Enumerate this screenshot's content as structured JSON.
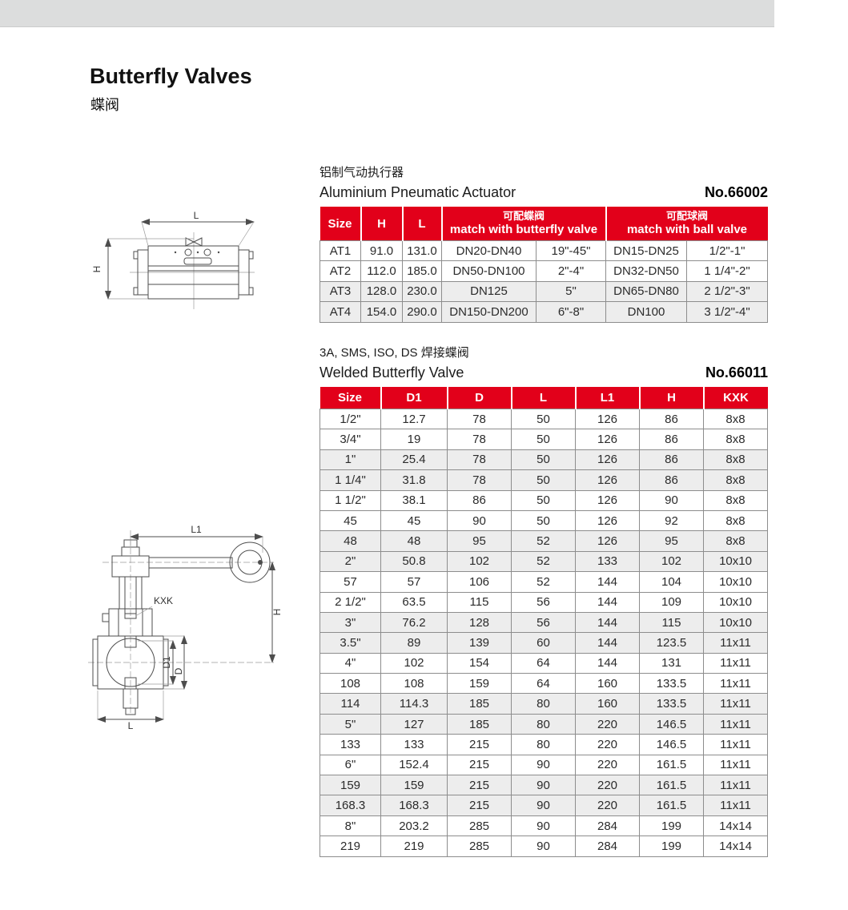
{
  "page": {
    "title": "Butterfly Valves",
    "subtitle_zh": "蝶阀"
  },
  "actuator_section": {
    "heading_zh": "铝制气动执行器",
    "heading_en": "Aluminium Pneumatic Actuator",
    "part_no": "No.66002",
    "table": {
      "columns": [
        {
          "label": "Size"
        },
        {
          "label": "H"
        },
        {
          "label": "L"
        },
        {
          "zh": "可配蝶阀",
          "en": "match with butterfly valve",
          "colspan": 2
        },
        {
          "zh": "可配球阀",
          "en": "match with ball valve",
          "colspan": 2
        }
      ],
      "rows": [
        [
          "AT1",
          "91.0",
          "131.0",
          "DN20-DN40",
          "19\"-45\"",
          "DN15-DN25",
          "1/2\"-1\""
        ],
        [
          "AT2",
          "112.0",
          "185.0",
          "DN50-DN100",
          "2\"-4\"",
          "DN32-DN50",
          "1 1/4\"-2\""
        ],
        [
          "AT3",
          "128.0",
          "230.0",
          "DN125",
          "5\"",
          "DN65-DN80",
          "2 1/2\"-3\""
        ],
        [
          "AT4",
          "154.0",
          "290.0",
          "DN150-DN200",
          "6\"-8\"",
          "DN100",
          "3 1/2\"-4\""
        ]
      ]
    }
  },
  "welded_section": {
    "heading_zh": "3A, SMS, ISO, DS 焊接蝶阀",
    "heading_en": "Welded Butterfly Valve",
    "part_no": "No.66011",
    "table": {
      "columns": [
        {
          "label": "Size"
        },
        {
          "label": "D1"
        },
        {
          "label": "D"
        },
        {
          "label": "L"
        },
        {
          "label": "L1"
        },
        {
          "label": "H"
        },
        {
          "label": "KXK"
        }
      ],
      "rows": [
        [
          "1/2\"",
          "12.7",
          "78",
          "50",
          "126",
          "86",
          "8x8"
        ],
        [
          "3/4\"",
          "19",
          "78",
          "50",
          "126",
          "86",
          "8x8"
        ],
        [
          "1\"",
          "25.4",
          "78",
          "50",
          "126",
          "86",
          "8x8"
        ],
        [
          "1 1/4\"",
          "31.8",
          "78",
          "50",
          "126",
          "86",
          "8x8"
        ],
        [
          "1 1/2\"",
          "38.1",
          "86",
          "50",
          "126",
          "90",
          "8x8"
        ],
        [
          "45",
          "45",
          "90",
          "50",
          "126",
          "92",
          "8x8"
        ],
        [
          "48",
          "48",
          "95",
          "52",
          "126",
          "95",
          "8x8"
        ],
        [
          "2\"",
          "50.8",
          "102",
          "52",
          "133",
          "102",
          "10x10"
        ],
        [
          "57",
          "57",
          "106",
          "52",
          "144",
          "104",
          "10x10"
        ],
        [
          "2 1/2\"",
          "63.5",
          "115",
          "56",
          "144",
          "109",
          "10x10"
        ],
        [
          "3\"",
          "76.2",
          "128",
          "56",
          "144",
          "115",
          "10x10"
        ],
        [
          "3.5\"",
          "89",
          "139",
          "60",
          "144",
          "123.5",
          "11x11"
        ],
        [
          "4\"",
          "102",
          "154",
          "64",
          "144",
          "131",
          "11x11"
        ],
        [
          "108",
          "108",
          "159",
          "64",
          "160",
          "133.5",
          "11x11"
        ],
        [
          "114",
          "114.3",
          "185",
          "80",
          "160",
          "133.5",
          "11x11"
        ],
        [
          "5\"",
          "127",
          "185",
          "80",
          "220",
          "146.5",
          "11x11"
        ],
        [
          "133",
          "133",
          "215",
          "80",
          "220",
          "146.5",
          "11x11"
        ],
        [
          "6\"",
          "152.4",
          "215",
          "90",
          "220",
          "161.5",
          "11x11"
        ],
        [
          "159",
          "159",
          "215",
          "90",
          "220",
          "161.5",
          "11x11"
        ],
        [
          "168.3",
          "168.3",
          "215",
          "90",
          "220",
          "161.5",
          "11x11"
        ],
        [
          "8\"",
          "203.2",
          "285",
          "90",
          "284",
          "199",
          "14x14"
        ],
        [
          "219",
          "219",
          "285",
          "90",
          "284",
          "199",
          "14x14"
        ]
      ]
    }
  },
  "drawings": {
    "actuator": {
      "dim_l": "L",
      "dim_h": "H"
    },
    "valve": {
      "dim_l1": "L1",
      "dim_h": "H",
      "dim_kxk": "KXK",
      "dim_d1": "D1",
      "dim_d": "D",
      "dim_l": "L"
    }
  },
  "colors": {
    "accent_red": "#e2001a",
    "row_stripe": "#ededed",
    "top_band": "#dcdddd"
  }
}
